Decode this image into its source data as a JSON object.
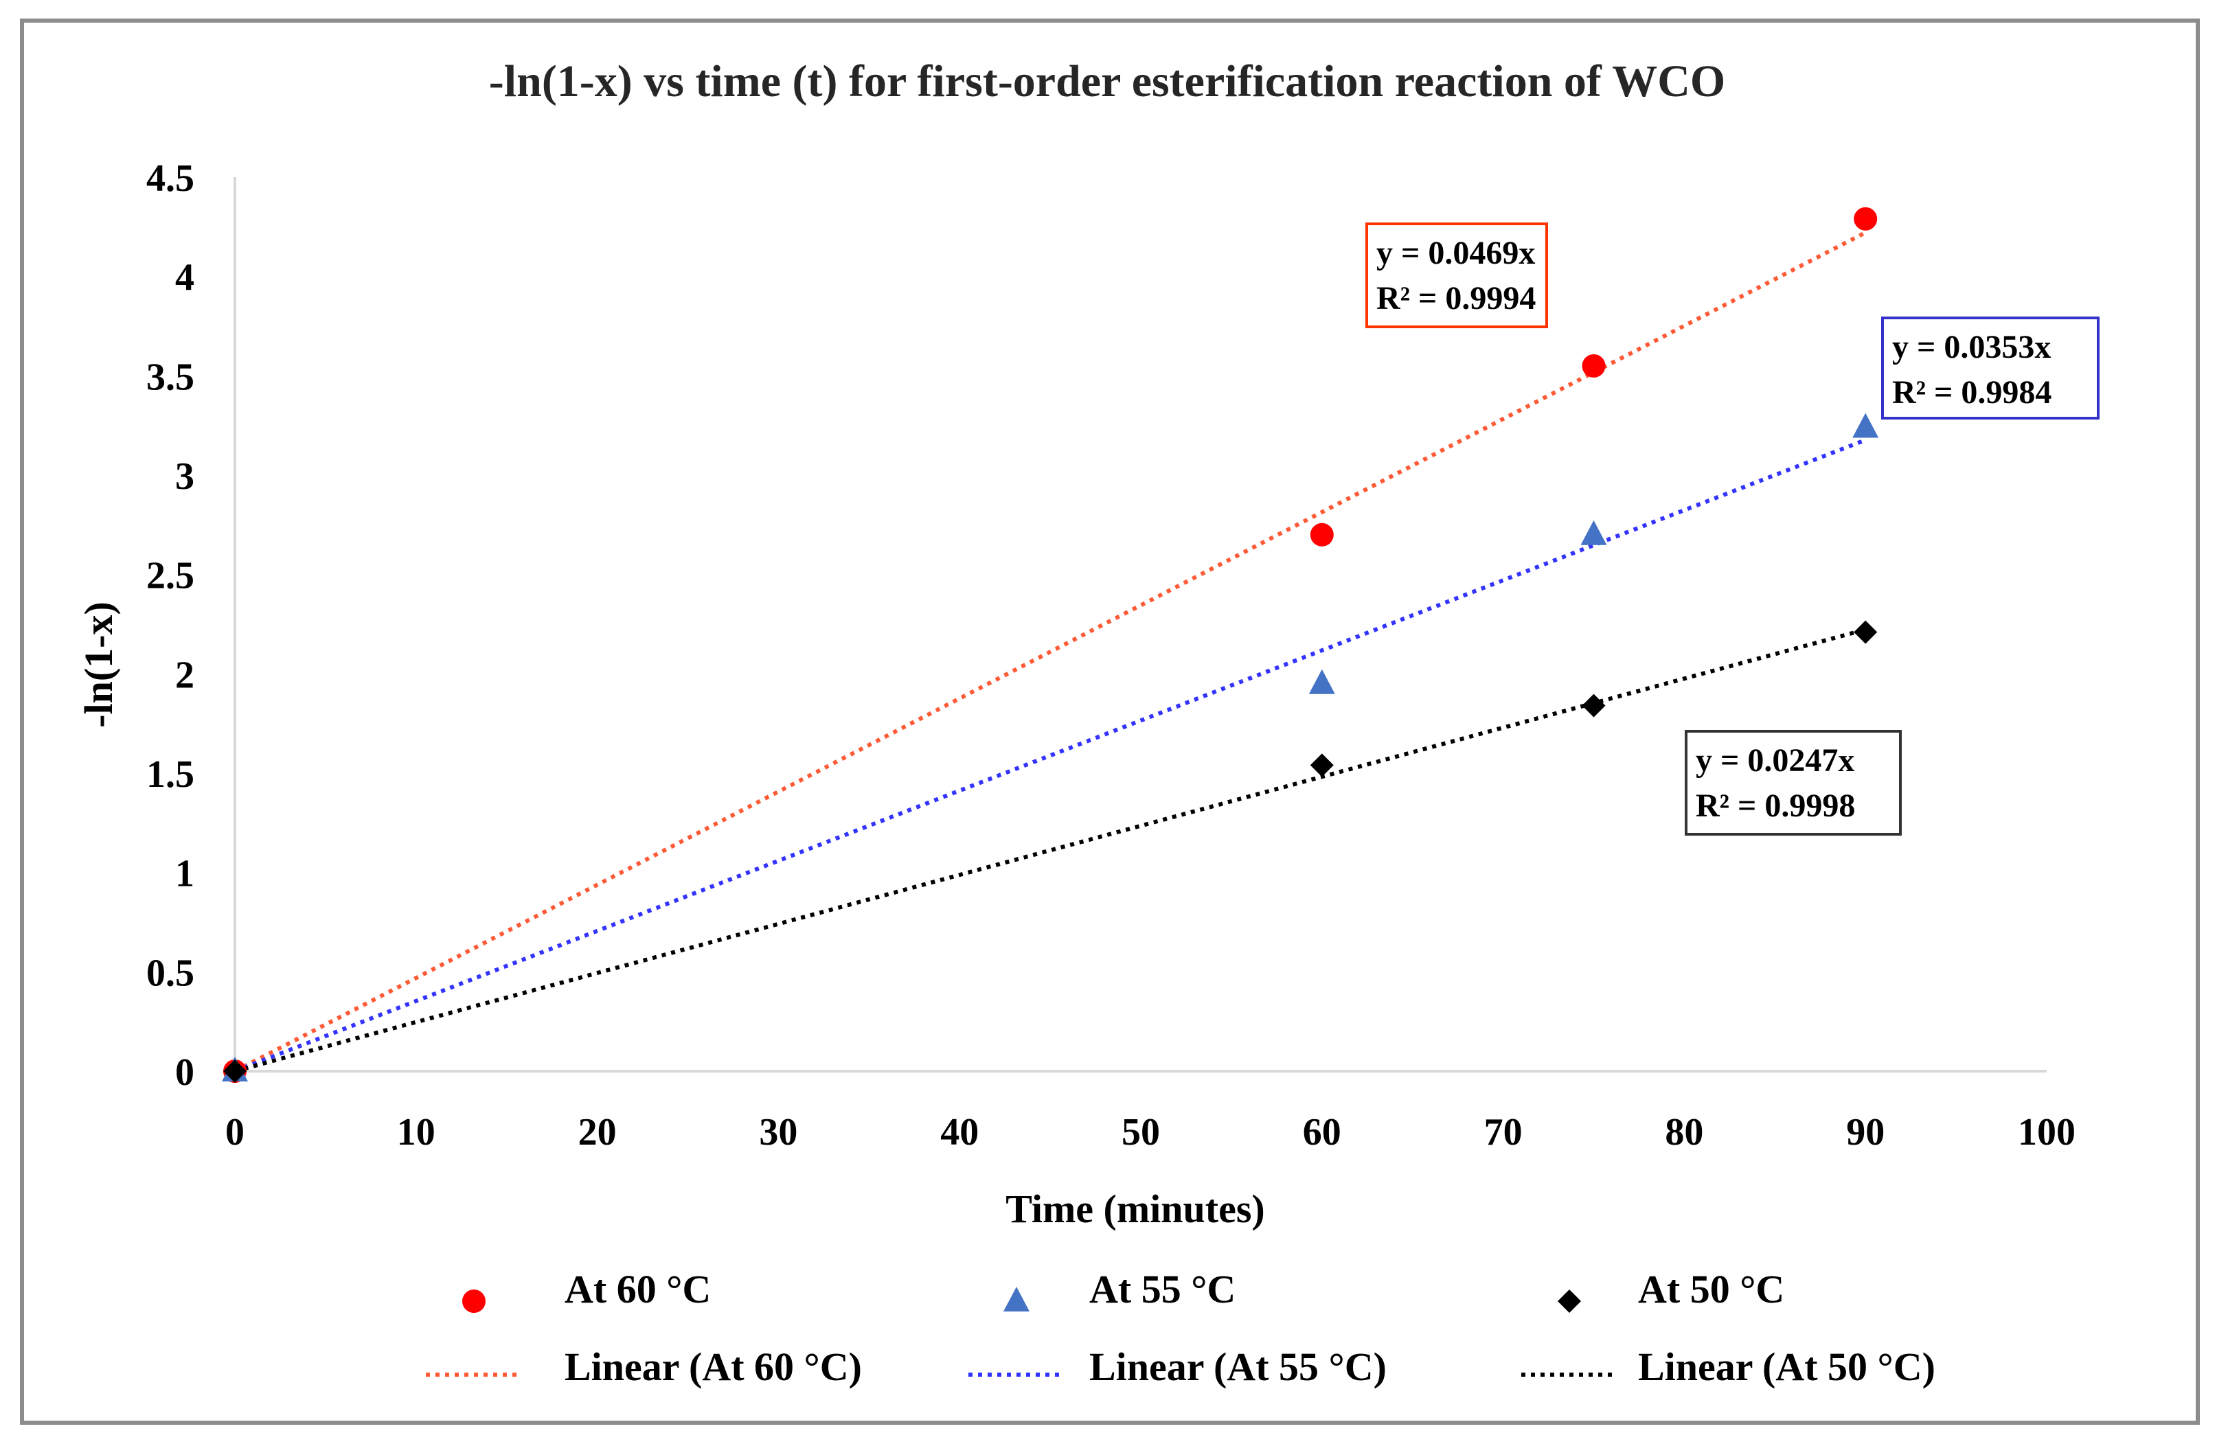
{
  "chart_data": {
    "type": "scatter",
    "title": "-ln(1-x) vs time (t) for first-order  esterification reaction of WCO",
    "xlabel": "Time (minutes)",
    "ylabel": "-ln(1-x)",
    "xlim": [
      0,
      100
    ],
    "ylim": [
      0,
      4.5
    ],
    "xticks": [
      0,
      10,
      20,
      30,
      40,
      50,
      60,
      70,
      80,
      90,
      100
    ],
    "yticks": [
      0,
      0.5,
      1,
      1.5,
      2,
      2.5,
      3,
      3.5,
      4,
      4.5
    ],
    "x_tick_labels": [
      "0",
      "10",
      "20",
      "30",
      "40",
      "50",
      "60",
      "70",
      "80",
      "90",
      "100"
    ],
    "y_tick_labels": [
      "0",
      "0.5",
      "1",
      "1.5",
      "2",
      "2.5",
      "3",
      "3.5",
      "4",
      "4.5"
    ],
    "grid": false,
    "legend_position": "bottom",
    "series": [
      {
        "name": "At 60 °C",
        "marker": "circle",
        "color": "#ff0000",
        "x": [
          0,
          60,
          75,
          90
        ],
        "y": [
          0,
          2.7,
          3.55,
          4.29
        ],
        "trendline": {
          "name": "Linear (At 60 °C)",
          "slope": 0.0469,
          "color": "#ff5a36",
          "equation": "y = 0.0469x",
          "r2": "R² = 0.9994",
          "box_border": "#ff3300"
        }
      },
      {
        "name": "At 55 °C",
        "marker": "triangle",
        "color": "#4472c4",
        "x": [
          0,
          60,
          75,
          90
        ],
        "y": [
          0,
          1.95,
          2.7,
          3.24
        ],
        "trendline": {
          "name": "Linear (At 55 °C)",
          "slope": 0.0353,
          "color": "#3333ff",
          "equation": "y = 0.0353x",
          "r2": "R² = 0.9984",
          "box_border": "#3333cc"
        }
      },
      {
        "name": "At 50 °C",
        "marker": "diamond",
        "color": "#000000",
        "x": [
          0,
          60,
          75,
          90
        ],
        "y": [
          0,
          1.54,
          1.84,
          2.21
        ],
        "trendline": {
          "name": "Linear (At 50 °C)",
          "slope": 0.0247,
          "color": "#000000",
          "equation": "y = 0.0247x",
          "r2": "R² = 0.9998",
          "box_border": "#333333"
        }
      }
    ]
  }
}
